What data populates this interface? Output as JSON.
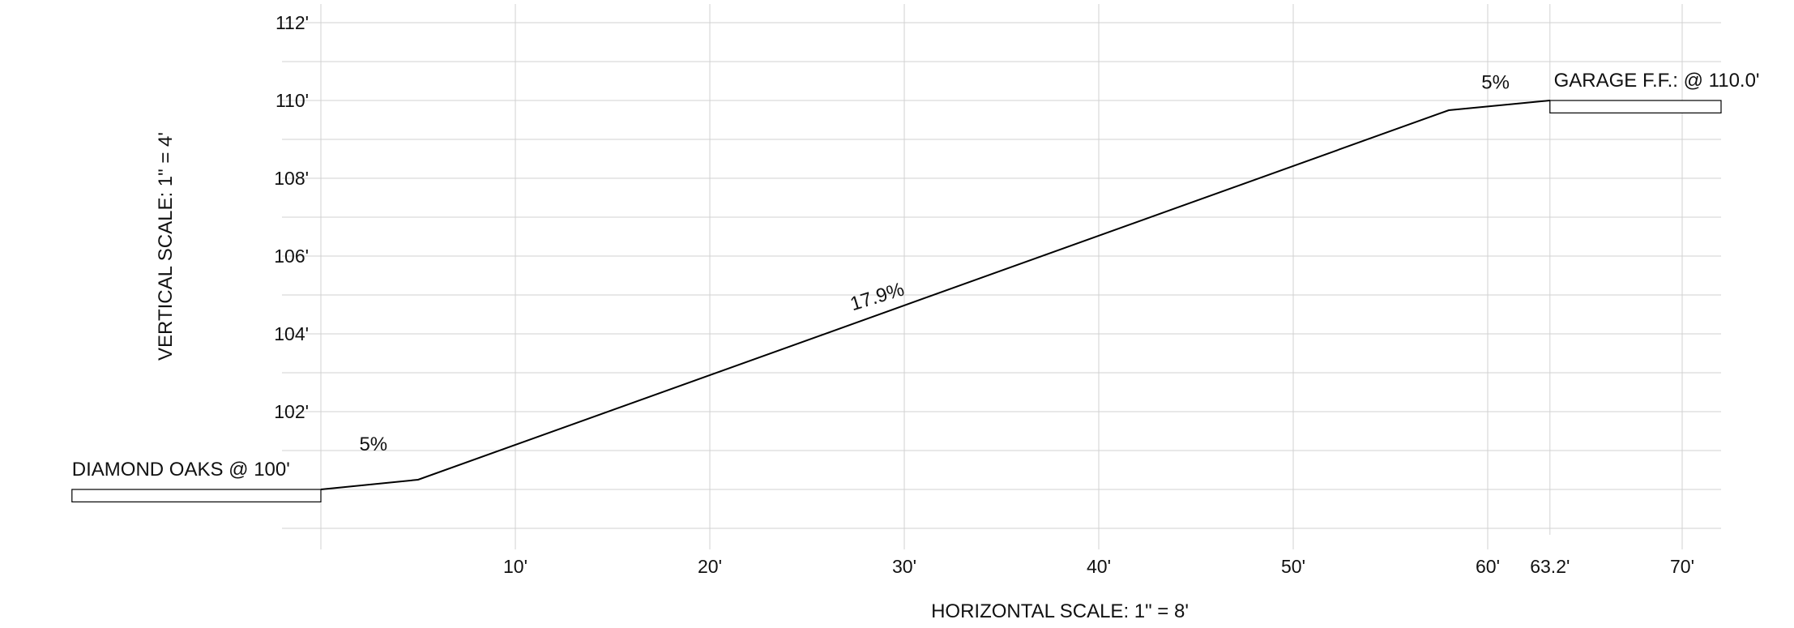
{
  "chart_data": {
    "type": "line",
    "xlabel": "HORIZONTAL SCALE: 1\" = 8'",
    "ylabel": "VERTICAL SCALE: 1\" = 4'",
    "x_ticks": [
      "10'",
      "20'",
      "30'",
      "40'",
      "50'",
      "60'",
      "63.2'",
      "70'"
    ],
    "x_tick_values": [
      10,
      20,
      30,
      40,
      50,
      60,
      63.2,
      70
    ],
    "y_ticks": [
      "102'",
      "104'",
      "106'",
      "108'",
      "110'",
      "112'"
    ],
    "y_tick_values": [
      102,
      104,
      106,
      108,
      110,
      112
    ],
    "xlim": [
      -10,
      72
    ],
    "ylim": [
      99,
      112.5
    ],
    "grid": true,
    "x_grid_step": 10,
    "y_grid_step": 1,
    "series": [
      {
        "x": [
          0,
          5,
          58,
          63.2
        ],
        "y": [
          100,
          100.25,
          109.75,
          110
        ]
      }
    ],
    "slopes": [
      {
        "text": "5%",
        "x": 2.7,
        "y": 101.0,
        "angle": 0
      },
      {
        "text": "17.9%",
        "x": 28.7,
        "y": 104.8,
        "angle": -17
      },
      {
        "text": "5%",
        "x": 60.4,
        "y": 110.3,
        "angle": 0
      }
    ],
    "annotations": [
      {
        "text": "DIAMOND OAKS @ 100'",
        "x": -12.8,
        "y": 100.35
      },
      {
        "text": "GARAGE F.F.: @ 110.0'",
        "x": 63.4,
        "y": 110.35
      }
    ],
    "platforms": [
      {
        "name": "diamond-oaks",
        "x0": -12.8,
        "x1": 0,
        "y": 100
      },
      {
        "name": "garage",
        "x0": 63.2,
        "x1": 72,
        "y": 110
      }
    ]
  }
}
